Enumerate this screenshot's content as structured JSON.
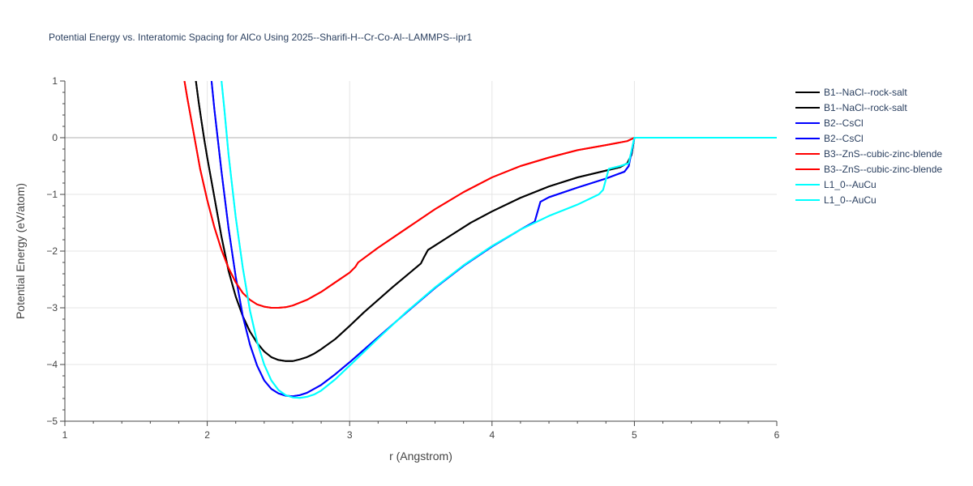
{
  "chart_data": {
    "type": "line",
    "title": "Potential Energy vs. Interatomic Spacing for AlCo Using 2025--Sharifi-H--Cr-Co-Al--LAMMPS--ipr1",
    "xlabel": "r (Angstrom)",
    "ylabel": "Potential Energy (eV/atom)",
    "xlim": [
      1,
      6
    ],
    "ylim": [
      -5,
      1
    ],
    "xticks": [
      "1",
      "2",
      "3",
      "4",
      "5",
      "6"
    ],
    "yticks": [
      "1",
      "0",
      "−1",
      "−2",
      "−3",
      "−4",
      "−5"
    ],
    "grid": true,
    "legend_position": "right",
    "series": [
      {
        "name": "B1--NaCl--rock-salt",
        "color": "#000000",
        "x": [
          1.92,
          1.94,
          1.96,
          1.98,
          2.0,
          2.05,
          2.1,
          2.15,
          2.2,
          2.25,
          2.3,
          2.35,
          2.4,
          2.45,
          2.5,
          2.55,
          2.6,
          2.65,
          2.7,
          2.75,
          2.8,
          2.9,
          3.0,
          3.1,
          3.2,
          3.3,
          3.4,
          3.5,
          3.52,
          3.55,
          3.7,
          3.85,
          4.0,
          4.2,
          4.4,
          4.6,
          4.8,
          4.9,
          4.95,
          4.98,
          5.0,
          5.2,
          5.5,
          6.0
        ],
        "y": [
          1.0,
          0.62,
          0.28,
          -0.05,
          -0.35,
          -1.05,
          -1.75,
          -2.35,
          -2.8,
          -3.15,
          -3.42,
          -3.62,
          -3.77,
          -3.87,
          -3.92,
          -3.94,
          -3.94,
          -3.91,
          -3.87,
          -3.81,
          -3.73,
          -3.55,
          -3.32,
          -3.08,
          -2.86,
          -2.64,
          -2.43,
          -2.22,
          -2.12,
          -1.98,
          -1.74,
          -1.5,
          -1.3,
          -1.06,
          -0.86,
          -0.7,
          -0.58,
          -0.52,
          -0.45,
          -0.3,
          0.0,
          0.0,
          0.0,
          0.0
        ]
      },
      {
        "name": "B1--NaCl--rock-salt",
        "color": "#000000",
        "x": [
          1.92,
          1.94,
          1.96,
          1.98,
          2.0,
          2.05,
          2.1,
          2.15,
          2.2,
          2.25,
          2.3,
          2.35,
          2.4,
          2.45,
          2.5,
          2.55,
          2.6,
          2.65,
          2.7,
          2.75,
          2.8,
          2.9,
          3.0,
          3.1,
          3.2,
          3.3,
          3.4,
          3.5,
          3.52,
          3.55,
          3.7,
          3.85,
          4.0,
          4.2,
          4.4,
          4.6,
          4.8,
          4.9,
          4.95,
          4.98,
          5.0,
          5.2,
          5.5,
          6.0
        ],
        "y": [
          1.0,
          0.62,
          0.28,
          -0.05,
          -0.35,
          -1.05,
          -1.75,
          -2.35,
          -2.8,
          -3.15,
          -3.42,
          -3.62,
          -3.77,
          -3.87,
          -3.92,
          -3.94,
          -3.94,
          -3.91,
          -3.87,
          -3.81,
          -3.73,
          -3.55,
          -3.32,
          -3.08,
          -2.86,
          -2.64,
          -2.43,
          -2.22,
          -2.12,
          -1.98,
          -1.74,
          -1.5,
          -1.3,
          -1.06,
          -0.86,
          -0.7,
          -0.58,
          -0.52,
          -0.45,
          -0.3,
          0.0,
          0.0,
          0.0,
          0.0
        ]
      },
      {
        "name": "B2--CsCl",
        "color": "#0000ff",
        "x": [
          2.03,
          2.05,
          2.1,
          2.15,
          2.2,
          2.25,
          2.3,
          2.35,
          2.4,
          2.45,
          2.5,
          2.55,
          2.6,
          2.65,
          2.7,
          2.8,
          2.9,
          3.0,
          3.2,
          3.4,
          3.6,
          3.8,
          4.0,
          4.2,
          4.3,
          4.34,
          4.4,
          4.6,
          4.8,
          4.93,
          4.96,
          5.0,
          5.2,
          5.5,
          6.0
        ],
        "y": [
          1.0,
          0.5,
          -0.6,
          -1.6,
          -2.45,
          -3.15,
          -3.65,
          -4.02,
          -4.28,
          -4.43,
          -4.51,
          -4.55,
          -4.56,
          -4.54,
          -4.5,
          -4.36,
          -4.17,
          -3.96,
          -3.52,
          -3.08,
          -2.65,
          -2.26,
          -1.92,
          -1.62,
          -1.48,
          -1.13,
          -1.05,
          -0.88,
          -0.72,
          -0.6,
          -0.5,
          0.0,
          0.0,
          0.0,
          0.0
        ]
      },
      {
        "name": "B2--CsCl",
        "color": "#0000ff",
        "x": [
          2.03,
          2.05,
          2.1,
          2.15,
          2.2,
          2.25,
          2.3,
          2.35,
          2.4,
          2.45,
          2.5,
          2.55,
          2.6,
          2.65,
          2.7,
          2.8,
          2.9,
          3.0,
          3.2,
          3.4,
          3.6,
          3.8,
          4.0,
          4.2,
          4.3,
          4.34,
          4.4,
          4.6,
          4.8,
          4.93,
          4.96,
          5.0,
          5.2,
          5.5,
          6.0
        ],
        "y": [
          1.0,
          0.5,
          -0.6,
          -1.6,
          -2.45,
          -3.15,
          -3.65,
          -4.02,
          -4.28,
          -4.43,
          -4.51,
          -4.55,
          -4.56,
          -4.54,
          -4.5,
          -4.36,
          -4.17,
          -3.96,
          -3.52,
          -3.08,
          -2.65,
          -2.26,
          -1.92,
          -1.62,
          -1.48,
          -1.13,
          -1.05,
          -0.88,
          -0.72,
          -0.6,
          -0.5,
          0.0,
          0.0,
          0.0,
          0.0
        ]
      },
      {
        "name": "B3--ZnS--cubic-zinc-blende",
        "color": "#ff0000",
        "x": [
          1.84,
          1.86,
          1.9,
          1.95,
          2.0,
          2.05,
          2.1,
          2.15,
          2.2,
          2.25,
          2.3,
          2.35,
          2.4,
          2.45,
          2.5,
          2.55,
          2.6,
          2.7,
          2.8,
          2.9,
          3.0,
          3.04,
          3.06,
          3.2,
          3.4,
          3.6,
          3.8,
          4.0,
          4.2,
          4.4,
          4.6,
          4.8,
          4.95,
          5.0,
          5.2,
          5.5,
          6.0
        ],
        "y": [
          1.0,
          0.7,
          0.15,
          -0.55,
          -1.1,
          -1.58,
          -1.98,
          -2.3,
          -2.55,
          -2.74,
          -2.86,
          -2.94,
          -2.98,
          -3.0,
          -3.0,
          -2.99,
          -2.96,
          -2.86,
          -2.72,
          -2.55,
          -2.38,
          -2.28,
          -2.2,
          -1.94,
          -1.6,
          -1.26,
          -0.96,
          -0.7,
          -0.5,
          -0.35,
          -0.22,
          -0.13,
          -0.06,
          0.0,
          0.0,
          0.0,
          0.0
        ]
      },
      {
        "name": "B3--ZnS--cubic-zinc-blende",
        "color": "#ff0000",
        "x": [
          1.84,
          1.86,
          1.9,
          1.95,
          2.0,
          2.05,
          2.1,
          2.15,
          2.2,
          2.25,
          2.3,
          2.35,
          2.4,
          2.45,
          2.5,
          2.55,
          2.6,
          2.7,
          2.8,
          2.9,
          3.0,
          3.04,
          3.06,
          3.2,
          3.4,
          3.6,
          3.8,
          4.0,
          4.2,
          4.4,
          4.6,
          4.8,
          4.95,
          5.0,
          5.2,
          5.5,
          6.0
        ],
        "y": [
          1.0,
          0.7,
          0.15,
          -0.55,
          -1.1,
          -1.58,
          -1.98,
          -2.3,
          -2.55,
          -2.74,
          -2.86,
          -2.94,
          -2.98,
          -3.0,
          -3.0,
          -2.99,
          -2.96,
          -2.86,
          -2.72,
          -2.55,
          -2.38,
          -2.28,
          -2.2,
          -1.94,
          -1.6,
          -1.26,
          -0.96,
          -0.7,
          -0.5,
          -0.35,
          -0.22,
          -0.13,
          -0.06,
          0.0,
          0.0,
          0.0,
          0.0
        ]
      },
      {
        "name": "L1_0--AuCu",
        "color": "#00ffff",
        "x": [
          2.1,
          2.12,
          2.15,
          2.2,
          2.25,
          2.3,
          2.35,
          2.4,
          2.45,
          2.5,
          2.55,
          2.6,
          2.65,
          2.7,
          2.75,
          2.8,
          2.9,
          3.0,
          3.2,
          3.4,
          3.6,
          3.8,
          4.0,
          4.2,
          4.4,
          4.6,
          4.75,
          4.78,
          4.82,
          4.9,
          4.96,
          5.0,
          5.2,
          5.5,
          6.0
        ],
        "y": [
          1.0,
          0.5,
          -0.3,
          -1.4,
          -2.3,
          -3.05,
          -3.6,
          -4.0,
          -4.28,
          -4.45,
          -4.54,
          -4.58,
          -4.59,
          -4.57,
          -4.53,
          -4.46,
          -4.26,
          -4.02,
          -3.54,
          -3.07,
          -2.64,
          -2.25,
          -1.91,
          -1.62,
          -1.38,
          -1.18,
          -1.0,
          -0.92,
          -0.55,
          -0.5,
          -0.45,
          0.0,
          0.0,
          0.0,
          0.0
        ]
      },
      {
        "name": "L1_0--AuCu",
        "color": "#00ffff",
        "x": [
          2.1,
          2.12,
          2.15,
          2.2,
          2.25,
          2.3,
          2.35,
          2.4,
          2.45,
          2.5,
          2.55,
          2.6,
          2.65,
          2.7,
          2.75,
          2.8,
          2.9,
          3.0,
          3.2,
          3.4,
          3.6,
          3.8,
          4.0,
          4.2,
          4.4,
          4.6,
          4.75,
          4.78,
          4.82,
          4.9,
          4.96,
          5.0,
          5.2,
          5.5,
          6.0
        ],
        "y": [
          1.0,
          0.5,
          -0.3,
          -1.4,
          -2.3,
          -3.05,
          -3.6,
          -4.0,
          -4.28,
          -4.45,
          -4.54,
          -4.58,
          -4.59,
          -4.57,
          -4.53,
          -4.46,
          -4.26,
          -4.02,
          -3.54,
          -3.07,
          -2.64,
          -2.25,
          -1.91,
          -1.62,
          -1.38,
          -1.18,
          -1.0,
          -0.92,
          -0.55,
          -0.5,
          -0.45,
          0.0,
          0.0,
          0.0,
          0.0
        ]
      }
    ]
  }
}
